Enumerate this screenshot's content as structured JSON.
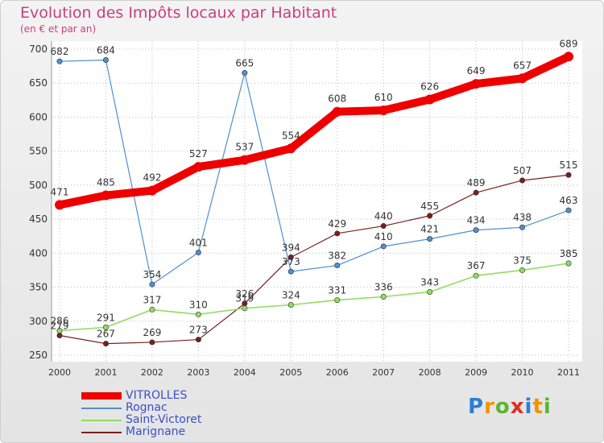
{
  "chart_data": {
    "type": "line",
    "title": "Evolution des Impôts locaux par Habitant",
    "subtitle": "(en € et par an)",
    "xlabel": "",
    "ylabel": "",
    "ylim": [
      250,
      700
    ],
    "yticks": [
      "250",
      "300",
      "350",
      "400",
      "450",
      "500",
      "550",
      "600",
      "650",
      "700"
    ],
    "categories": [
      "2000",
      "2001",
      "2002",
      "2003",
      "2004",
      "2005",
      "2006",
      "2007",
      "2008",
      "2009",
      "2010",
      "2011"
    ],
    "series": [
      {
        "name": "VITROLLES",
        "color": "#ee0000",
        "values": [
          471,
          485,
          492,
          527,
          537,
          554,
          608,
          610,
          626,
          649,
          657,
          689
        ]
      },
      {
        "name": "Rognac",
        "color": "#4f8fd0",
        "values": [
          682,
          684,
          354,
          401,
          665,
          373,
          382,
          410,
          421,
          434,
          438,
          463
        ]
      },
      {
        "name": "Saint-Victoret",
        "color": "#90dd60",
        "values": [
          286,
          291,
          317,
          310,
          319,
          324,
          331,
          336,
          343,
          367,
          375,
          385
        ]
      },
      {
        "name": "Marignane",
        "color": "#7a1e1e",
        "values": [
          279,
          267,
          269,
          273,
          326,
          394,
          429,
          440,
          455,
          489,
          507,
          515
        ]
      }
    ],
    "legend_position": "bottom-left",
    "grid": true
  },
  "logo": {
    "letters": [
      "P",
      "r",
      "o",
      "x",
      "i",
      "t",
      "i"
    ],
    "colors": [
      "#2a7fd6",
      "#f39200",
      "#5bb531",
      "#e0301e",
      "#2a7fd6",
      "#f39200",
      "#5bb531"
    ]
  }
}
